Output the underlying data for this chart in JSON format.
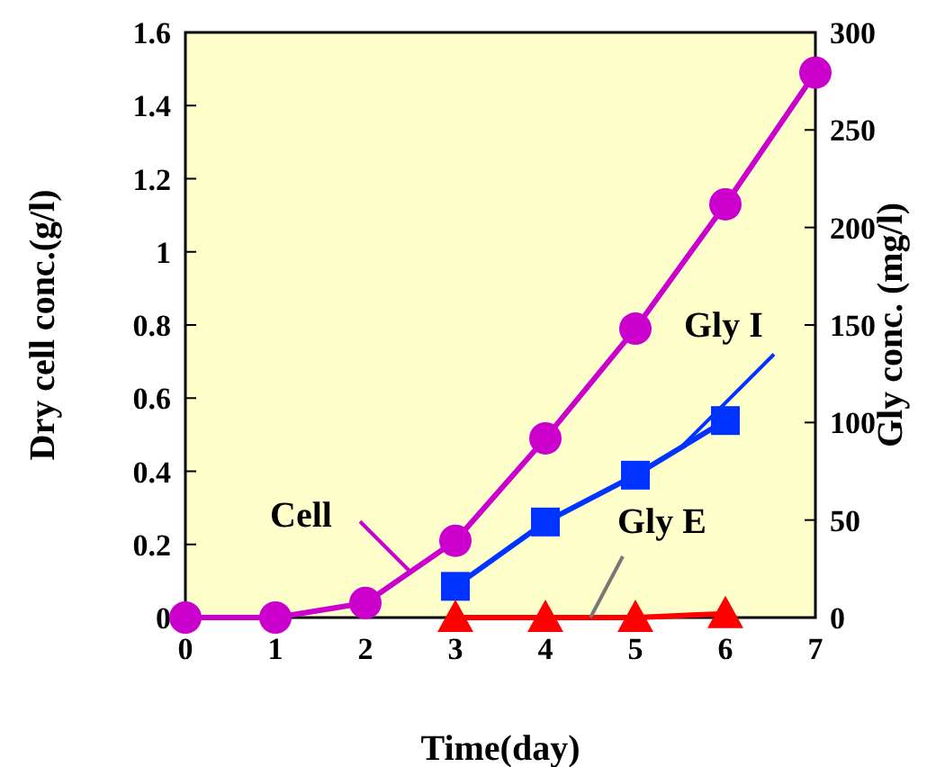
{
  "chart_data": {
    "type": "line",
    "xlabel": "Time(day)",
    "ylabel": "Dry cell conc.(g/l)",
    "y2label": "Gly conc. (mg/l)",
    "xlim": [
      0,
      7
    ],
    "xticks": [
      0,
      1,
      2,
      3,
      4,
      5,
      6,
      7
    ],
    "ylim": [
      0,
      1.6
    ],
    "yticks": [
      0,
      0.2,
      0.4,
      0.6,
      0.8,
      1,
      1.2,
      1.4,
      1.6
    ],
    "y2lim": [
      0,
      300
    ],
    "y2ticks": [
      0,
      50,
      100,
      150,
      200,
      250,
      300
    ],
    "series": [
      {
        "name": "Cell",
        "color": "#cc00cc",
        "marker": "circle",
        "x": [
          0,
          1,
          2,
          3,
          4,
          5,
          6,
          7
        ],
        "values": [
          0,
          0,
          0.04,
          0.21,
          0.49,
          0.79,
          1.13,
          1.49
        ]
      },
      {
        "name": "Gly I",
        "color": "#0033ff",
        "marker": "square",
        "axis": "y2",
        "x": [
          3,
          4,
          5,
          6
        ],
        "values": [
          16,
          49,
          73,
          101
        ]
      },
      {
        "name": "Gly E",
        "color": "#ff0000",
        "marker": "triangle",
        "axis": "y2",
        "x": [
          3,
          4,
          5,
          6
        ],
        "values": [
          0,
          0,
          0,
          2
        ]
      }
    ]
  }
}
